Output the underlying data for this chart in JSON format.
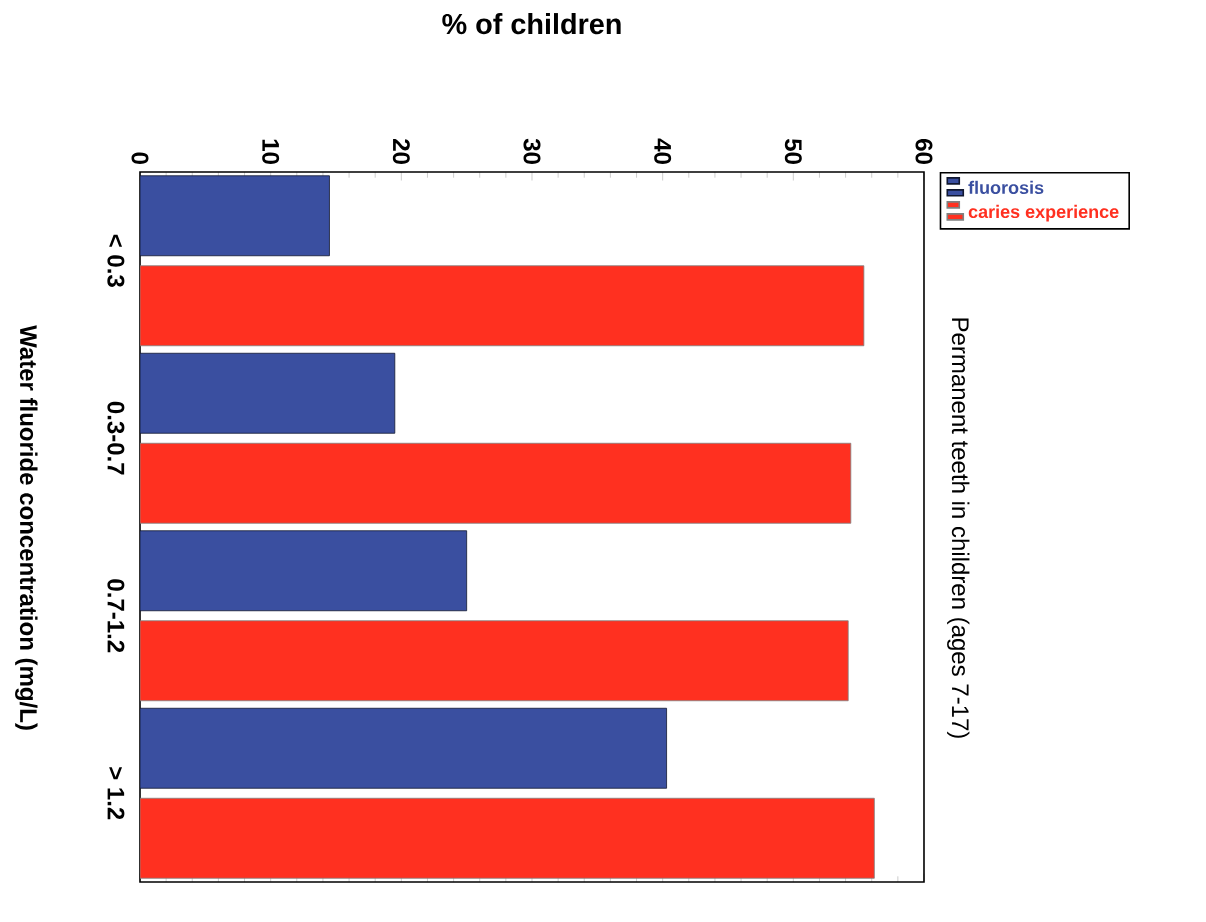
{
  "chart_data": {
    "type": "bar",
    "orientation": "horizontal",
    "title": "Permanent teeth in children (ages 7-17)",
    "xlabel": "% of children",
    "ylabel": "Water fluoride concentration (mg/L)",
    "categories": [
      "< 0.3",
      "0.3-0.7",
      "0.7-1.2",
      "> 1.2"
    ],
    "series": [
      {
        "name": "fluorosis",
        "color": "#3a4fa0",
        "values": [
          14.5,
          19.5,
          25.0,
          40.3
        ]
      },
      {
        "name": "caries experience",
        "color": "#ff3020",
        "values": [
          55.4,
          54.4,
          54.2,
          56.2
        ]
      }
    ],
    "xlim": [
      0,
      60
    ],
    "xticks": [
      0,
      10,
      20,
      30,
      40,
      50,
      60
    ],
    "legend": "right",
    "grid": false
  }
}
